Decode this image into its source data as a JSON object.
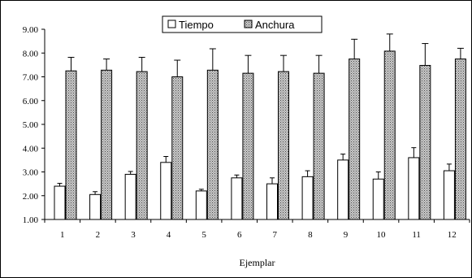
{
  "chart_data": {
    "type": "bar",
    "title": "",
    "xlabel": "Ejemplar",
    "ylabel": "",
    "ylim": [
      1.0,
      9.0
    ],
    "yticks": [
      "9.00",
      "8.00",
      "7.00",
      "6.00",
      "5.00",
      "4.00",
      "3.00",
      "2.00",
      "1.00"
    ],
    "yticks_values": [
      9,
      8,
      7,
      6,
      5,
      4,
      3,
      2,
      1
    ],
    "categories": [
      "1",
      "2",
      "3",
      "4",
      "5",
      "6",
      "7",
      "8",
      "9",
      "10",
      "11",
      "12"
    ],
    "legend_position": "top-center",
    "grid": false,
    "error_bars": "upper",
    "series": [
      {
        "name": "Tiempo",
        "color": "#ffffff",
        "pattern": "none",
        "values": [
          2.4,
          2.05,
          2.9,
          3.4,
          2.2,
          2.75,
          2.5,
          2.8,
          3.5,
          2.7,
          3.6,
          3.05
        ],
        "errors": [
          0.12,
          0.12,
          0.12,
          0.25,
          0.07,
          0.12,
          0.25,
          0.25,
          0.25,
          0.3,
          0.42,
          0.28
        ]
      },
      {
        "name": "Anchura",
        "color": "#a8a8a8",
        "pattern": "dotted",
        "values": [
          7.25,
          7.28,
          7.22,
          7.0,
          7.28,
          7.15,
          7.22,
          7.15,
          7.75,
          8.08,
          7.48,
          7.75
        ],
        "errors": [
          0.57,
          0.47,
          0.6,
          0.7,
          0.9,
          0.75,
          0.68,
          0.75,
          0.83,
          0.72,
          0.92,
          0.45
        ]
      }
    ]
  }
}
